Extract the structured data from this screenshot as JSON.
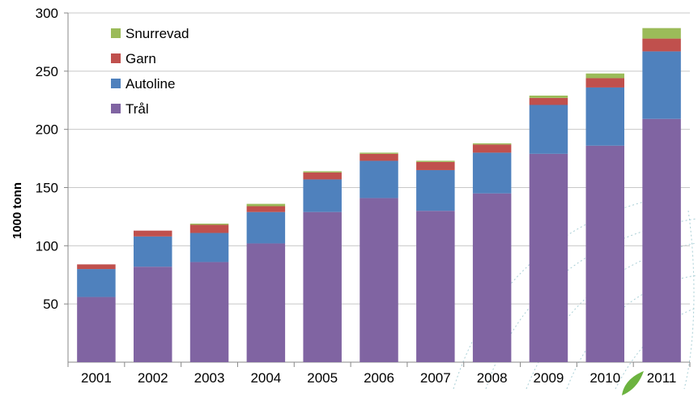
{
  "chart_data": {
    "type": "bar",
    "stacked": true,
    "categories": [
      "2001",
      "2002",
      "2003",
      "2004",
      "2005",
      "2006",
      "2007",
      "2008",
      "2009",
      "2010",
      "2011"
    ],
    "series": [
      {
        "name": "Trål",
        "color": "#8064a2",
        "values": [
          56,
          82,
          86,
          102,
          129,
          141,
          130,
          145,
          179,
          186,
          209
        ]
      },
      {
        "name": "Autoline",
        "color": "#4f81bd",
        "values": [
          24,
          26,
          25,
          27,
          28,
          32,
          35,
          35,
          42,
          50,
          58
        ]
      },
      {
        "name": "Garn",
        "color": "#c0504d",
        "values": [
          4,
          5,
          7,
          5,
          6,
          6,
          7,
          7,
          6,
          8,
          11
        ]
      },
      {
        "name": "Snurrevad",
        "color": "#9bbb59",
        "values": [
          0,
          0,
          1,
          2,
          1,
          1,
          1,
          1,
          2,
          4,
          9
        ]
      }
    ],
    "ylabel": "1000 tonn",
    "xlabel": "",
    "title": "",
    "ylim": [
      0,
      300
    ],
    "yticks": [
      50,
      100,
      150,
      200,
      250,
      300
    ],
    "grid": true,
    "legend_position": "top-left",
    "legend_order": [
      "Snurrevad",
      "Garn",
      "Autoline",
      "Trål"
    ]
  }
}
